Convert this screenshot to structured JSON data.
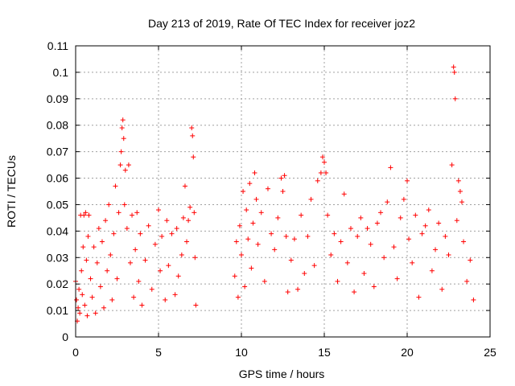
{
  "chart_data": {
    "type": "scatter",
    "title": "Day 213 of 2019, Rate Of TEC Index for receiver joz2",
    "xlabel": "GPS time / hours",
    "ylabel": "ROTI / TECUs",
    "xlim": [
      0,
      25
    ],
    "ylim": [
      0,
      0.11
    ],
    "xticks": [
      0,
      5,
      10,
      15,
      20,
      25
    ],
    "xtick_labels": [
      "0",
      "5",
      "10",
      "15",
      "20",
      "25"
    ],
    "yticks": [
      0,
      0.01,
      0.02,
      0.03,
      0.04,
      0.05,
      0.06,
      0.07,
      0.08,
      0.09,
      0.1,
      0.11
    ],
    "ytick_labels": [
      "0",
      "0.01",
      "0.02",
      "0.03",
      "0.04",
      "0.05",
      "0.06",
      "0.07",
      "0.08",
      "0.09",
      "0.1",
      "0.11"
    ],
    "grid": true,
    "marker": "plus",
    "color": "#ff0000",
    "data_gap_hours": [
      7.4,
      9.6
    ],
    "series": [
      {
        "name": "ROTI",
        "points": [
          [
            0.0,
            0.021
          ],
          [
            0.05,
            0.014
          ],
          [
            0.1,
            0.006
          ],
          [
            0.15,
            0.011
          ],
          [
            0.2,
            0.018
          ],
          [
            0.25,
            0.009
          ],
          [
            0.3,
            0.046
          ],
          [
            0.35,
            0.025
          ],
          [
            0.4,
            0.016
          ],
          [
            0.45,
            0.034
          ],
          [
            0.5,
            0.046
          ],
          [
            0.55,
            0.012
          ],
          [
            0.6,
            0.047
          ],
          [
            0.65,
            0.029
          ],
          [
            0.7,
            0.008
          ],
          [
            0.75,
            0.038
          ],
          [
            0.8,
            0.046
          ],
          [
            0.9,
            0.022
          ],
          [
            1.0,
            0.015
          ],
          [
            1.1,
            0.034
          ],
          [
            1.2,
            0.009
          ],
          [
            1.3,
            0.028
          ],
          [
            1.4,
            0.041
          ],
          [
            1.5,
            0.019
          ],
          [
            1.6,
            0.036
          ],
          [
            1.7,
            0.011
          ],
          [
            1.8,
            0.044
          ],
          [
            1.9,
            0.025
          ],
          [
            2.0,
            0.05
          ],
          [
            2.1,
            0.031
          ],
          [
            2.2,
            0.014
          ],
          [
            2.3,
            0.039
          ],
          [
            2.4,
            0.057
          ],
          [
            2.5,
            0.022
          ],
          [
            2.6,
            0.047
          ],
          [
            2.7,
            0.065
          ],
          [
            2.75,
            0.07
          ],
          [
            2.8,
            0.079
          ],
          [
            2.85,
            0.082
          ],
          [
            2.9,
            0.075
          ],
          [
            2.95,
            0.05
          ],
          [
            3.0,
            0.063
          ],
          [
            3.1,
            0.041
          ],
          [
            3.2,
            0.065
          ],
          [
            3.3,
            0.028
          ],
          [
            3.4,
            0.046
          ],
          [
            3.5,
            0.015
          ],
          [
            3.6,
            0.033
          ],
          [
            3.7,
            0.047
          ],
          [
            3.8,
            0.021
          ],
          [
            3.9,
            0.039
          ],
          [
            4.0,
            0.012
          ],
          [
            4.2,
            0.029
          ],
          [
            4.4,
            0.042
          ],
          [
            4.6,
            0.018
          ],
          [
            4.8,
            0.035
          ],
          [
            5.0,
            0.048
          ],
          [
            5.1,
            0.025
          ],
          [
            5.2,
            0.038
          ],
          [
            5.4,
            0.014
          ],
          [
            5.5,
            0.044
          ],
          [
            5.6,
            0.027
          ],
          [
            5.8,
            0.039
          ],
          [
            6.0,
            0.016
          ],
          [
            6.1,
            0.041
          ],
          [
            6.2,
            0.023
          ],
          [
            6.4,
            0.031
          ],
          [
            6.5,
            0.045
          ],
          [
            6.6,
            0.057
          ],
          [
            6.7,
            0.036
          ],
          [
            6.8,
            0.044
          ],
          [
            6.9,
            0.049
          ],
          [
            7.0,
            0.079
          ],
          [
            7.05,
            0.076
          ],
          [
            7.1,
            0.068
          ],
          [
            7.15,
            0.047
          ],
          [
            7.2,
            0.03
          ],
          [
            7.25,
            0.012
          ],
          [
            9.6,
            0.023
          ],
          [
            9.7,
            0.036
          ],
          [
            9.8,
            0.015
          ],
          [
            9.9,
            0.042
          ],
          [
            10.0,
            0.031
          ],
          [
            10.1,
            0.055
          ],
          [
            10.2,
            0.019
          ],
          [
            10.3,
            0.048
          ],
          [
            10.4,
            0.037
          ],
          [
            10.5,
            0.058
          ],
          [
            10.6,
            0.026
          ],
          [
            10.7,
            0.043
          ],
          [
            10.8,
            0.062
          ],
          [
            10.9,
            0.052
          ],
          [
            11.0,
            0.035
          ],
          [
            11.2,
            0.047
          ],
          [
            11.4,
            0.021
          ],
          [
            11.6,
            0.056
          ],
          [
            11.8,
            0.039
          ],
          [
            12.0,
            0.033
          ],
          [
            12.2,
            0.045
          ],
          [
            12.4,
            0.06
          ],
          [
            12.5,
            0.055
          ],
          [
            12.6,
            0.061
          ],
          [
            12.7,
            0.038
          ],
          [
            12.8,
            0.017
          ],
          [
            13.0,
            0.029
          ],
          [
            13.2,
            0.037
          ],
          [
            13.4,
            0.018
          ],
          [
            13.6,
            0.046
          ],
          [
            13.8,
            0.024
          ],
          [
            14.0,
            0.038
          ],
          [
            14.2,
            0.052
          ],
          [
            14.4,
            0.027
          ],
          [
            14.6,
            0.059
          ],
          [
            14.8,
            0.062
          ],
          [
            14.9,
            0.068
          ],
          [
            15.0,
            0.066
          ],
          [
            15.1,
            0.062
          ],
          [
            15.2,
            0.046
          ],
          [
            15.4,
            0.031
          ],
          [
            15.6,
            0.039
          ],
          [
            15.8,
            0.021
          ],
          [
            16.0,
            0.036
          ],
          [
            16.2,
            0.054
          ],
          [
            16.4,
            0.028
          ],
          [
            16.6,
            0.041
          ],
          [
            16.8,
            0.017
          ],
          [
            17.0,
            0.038
          ],
          [
            17.2,
            0.045
          ],
          [
            17.4,
            0.024
          ],
          [
            17.6,
            0.041
          ],
          [
            17.8,
            0.035
          ],
          [
            18.0,
            0.019
          ],
          [
            18.2,
            0.043
          ],
          [
            18.4,
            0.047
          ],
          [
            18.6,
            0.03
          ],
          [
            18.8,
            0.051
          ],
          [
            19.0,
            0.064
          ],
          [
            19.2,
            0.034
          ],
          [
            19.4,
            0.022
          ],
          [
            19.6,
            0.045
          ],
          [
            19.8,
            0.052
          ],
          [
            20.0,
            0.059
          ],
          [
            20.1,
            0.037
          ],
          [
            20.3,
            0.028
          ],
          [
            20.5,
            0.046
          ],
          [
            20.7,
            0.015
          ],
          [
            20.9,
            0.039
          ],
          [
            21.1,
            0.042
          ],
          [
            21.3,
            0.048
          ],
          [
            21.5,
            0.025
          ],
          [
            21.7,
            0.033
          ],
          [
            21.9,
            0.043
          ],
          [
            22.1,
            0.018
          ],
          [
            22.3,
            0.038
          ],
          [
            22.5,
            0.031
          ],
          [
            22.7,
            0.065
          ],
          [
            22.8,
            0.102
          ],
          [
            22.85,
            0.1
          ],
          [
            22.9,
            0.09
          ],
          [
            23.0,
            0.044
          ],
          [
            23.1,
            0.059
          ],
          [
            23.2,
            0.055
          ],
          [
            23.3,
            0.051
          ],
          [
            23.4,
            0.036
          ],
          [
            23.6,
            0.021
          ],
          [
            23.8,
            0.029
          ],
          [
            24.0,
            0.014
          ]
        ]
      }
    ]
  }
}
